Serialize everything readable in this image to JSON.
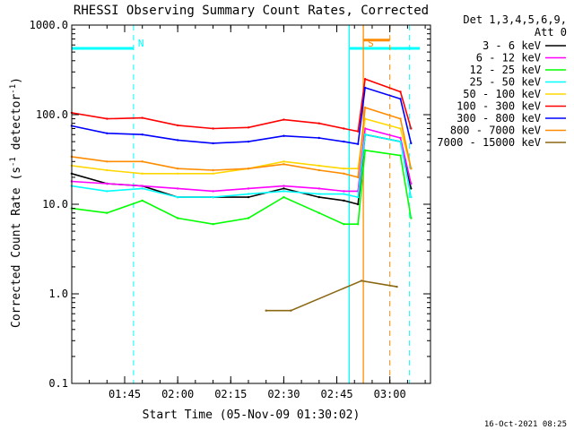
{
  "chart_data": {
    "type": "line",
    "title": "RHESSI Observing Summary Count Rates, Corrected",
    "xlabel": "Start Time (05-Nov-09 01:30:02)",
    "ylabel_main": "Corrected Count Rate (s",
    "ylabel_sup1": "-1",
    "ylabel_mid": " detector",
    "ylabel_sup2": "-1",
    "ylabel_end": ")",
    "y_scale": "log",
    "ylim": [
      0.1,
      1000
    ],
    "xlim": [
      "01:30:02",
      "03:11:30"
    ],
    "x_ticks": [
      "01:45",
      "02:00",
      "02:15",
      "02:30",
      "02:45",
      "03:00"
    ],
    "y_ticks": [
      "0.1",
      "1.0",
      "10.0",
      "100.0",
      "1000.0"
    ],
    "legend_header_1": "Det 1,3,4,5,6,9,",
    "legend_header_2": "Att 0",
    "legend_position": "right",
    "timestamp": "16-Oct-2021 08:25",
    "series": [
      {
        "name": "3 - 6 keV",
        "color": "#000000",
        "x": [
          "01:30",
          "01:40",
          "01:50",
          "02:00",
          "02:10",
          "02:20",
          "02:30",
          "02:40",
          "02:47",
          "02:51",
          "02:53",
          "03:03",
          "03:06"
        ],
        "y": [
          22,
          17,
          16,
          12,
          12,
          12,
          15,
          12,
          11,
          10,
          60,
          50,
          15
        ]
      },
      {
        "name": "6 - 12 keV",
        "color": "#ff00ff",
        "x": [
          "01:30",
          "01:40",
          "01:50",
          "02:00",
          "02:10",
          "02:20",
          "02:30",
          "02:40",
          "02:47",
          "02:51",
          "02:53",
          "03:03",
          "03:06"
        ],
        "y": [
          18,
          17,
          16,
          15,
          14,
          15,
          16,
          15,
          14,
          14,
          70,
          55,
          17
        ]
      },
      {
        "name": "12 - 25 keV",
        "color": "#00ff00",
        "x": [
          "01:30",
          "01:40",
          "01:50",
          "02:00",
          "02:10",
          "02:20",
          "02:30",
          "02:40",
          "02:47",
          "02:51",
          "02:53",
          "03:03",
          "03:06"
        ],
        "y": [
          9,
          8,
          11,
          7,
          6,
          7,
          12,
          8,
          6,
          6,
          40,
          35,
          7
        ]
      },
      {
        "name": "25 - 50 keV",
        "color": "#00ffff",
        "x": [
          "01:30",
          "01:40",
          "01:50",
          "02:00",
          "02:10",
          "02:20",
          "02:30",
          "02:40",
          "02:47",
          "02:51",
          "02:53",
          "03:03",
          "03:06"
        ],
        "y": [
          16,
          14,
          15,
          12,
          12,
          13,
          14,
          13,
          13,
          12,
          60,
          50,
          12
        ]
      },
      {
        "name": "50 - 100 keV",
        "color": "#ffd700",
        "x": [
          "01:30",
          "01:40",
          "01:50",
          "02:00",
          "02:10",
          "02:20",
          "02:30",
          "02:40",
          "02:47",
          "02:51",
          "02:53",
          "03:03",
          "03:06"
        ],
        "y": [
          27,
          24,
          22,
          22,
          22,
          25,
          30,
          27,
          25,
          25,
          90,
          70,
          25
        ]
      },
      {
        "name": "100 - 300 keV",
        "color": "#ff0000",
        "x": [
          "01:30",
          "01:40",
          "01:50",
          "02:00",
          "02:10",
          "02:20",
          "02:30",
          "02:40",
          "02:47",
          "02:51",
          "02:53",
          "03:03",
          "03:06"
        ],
        "y": [
          105,
          90,
          92,
          76,
          70,
          72,
          88,
          80,
          70,
          65,
          250,
          180,
          70
        ]
      },
      {
        "name": "300 - 800 keV",
        "color": "#0000ff",
        "x": [
          "01:30",
          "01:40",
          "01:50",
          "02:00",
          "02:10",
          "02:20",
          "02:30",
          "02:40",
          "02:47",
          "02:51",
          "02:53",
          "03:03",
          "03:06"
        ],
        "y": [
          75,
          62,
          60,
          52,
          48,
          50,
          58,
          55,
          50,
          47,
          200,
          150,
          48
        ]
      },
      {
        "name": "800 - 7000 keV",
        "color": "#ff8c00",
        "x": [
          "01:30",
          "01:40",
          "01:50",
          "02:00",
          "02:10",
          "02:20",
          "02:30",
          "02:40",
          "02:47",
          "02:51",
          "02:53",
          "03:03",
          "03:06"
        ],
        "y": [
          34,
          30,
          30,
          25,
          24,
          25,
          28,
          24,
          22,
          20,
          120,
          90,
          25
        ]
      },
      {
        "name": "7000 - 15000 keV",
        "color": "#8b6914",
        "x": [
          "02:25",
          "02:32",
          "02:52",
          "03:02"
        ],
        "y": [
          0.65,
          0.65,
          1.4,
          1.2
        ]
      }
    ],
    "bands": [
      {
        "label": "",
        "color": "#00ffff",
        "start": "01:30:02",
        "end": "01:47:30",
        "y": 550
      },
      {
        "label": "N",
        "color": "#00ffff",
        "x": "01:47:30"
      },
      {
        "label": "S",
        "color": "#ff8c00",
        "start": "02:52:30",
        "end": "03:00:00",
        "y": 680
      },
      {
        "label": "",
        "color": "#00ffff",
        "start": "02:48:30",
        "end": "03:08:30",
        "y": 550
      }
    ],
    "vlines_solid": [
      {
        "color": "#00ffff",
        "x": "02:48:30"
      },
      {
        "color": "#ff8c00",
        "x": "02:52:30"
      }
    ],
    "vlines_dashed": [
      {
        "color": "#00ffff",
        "x": "01:47:30"
      },
      {
        "color": "#ff8c00",
        "x": "03:00:00"
      },
      {
        "color": "#00ffff",
        "x": "03:05:30"
      }
    ],
    "grid": false
  }
}
